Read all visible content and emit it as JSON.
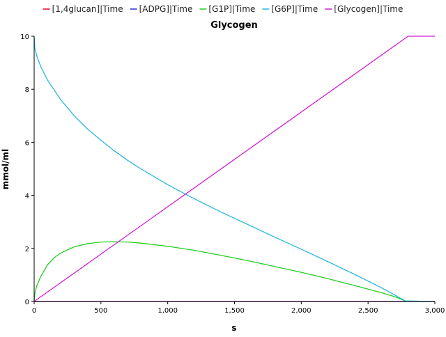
{
  "chart_data": {
    "type": "line",
    "title": "Glycogen",
    "xlabel": "s",
    "ylabel": "mmol/ml",
    "xlim": [
      0,
      3000
    ],
    "ylim": [
      0,
      10
    ],
    "xticks": [
      0,
      500,
      1000,
      1500,
      2000,
      2500,
      3000
    ],
    "xtick_labels": [
      "0",
      "500",
      "1,000",
      "1,500",
      "2,000",
      "2,500",
      "3,000"
    ],
    "yticks": [
      0,
      2,
      4,
      6,
      8,
      10
    ],
    "ytick_labels": [
      "0",
      "2",
      "4",
      "6",
      "8",
      "10"
    ],
    "grid": false,
    "legend_position": "top",
    "series": [
      {
        "name": "[1,4glucan]|Time",
        "color": "#e8002a",
        "x": [
          0,
          3000
        ],
        "y": [
          0,
          0
        ]
      },
      {
        "name": "[ADPG]|Time",
        "color": "#2a2adc",
        "x": [
          0,
          3000
        ],
        "y": [
          0,
          0
        ]
      },
      {
        "name": "[G1P]|Time",
        "color": "#22cc22",
        "x": [
          0,
          5,
          20,
          50,
          100,
          150,
          200,
          300,
          400,
          500,
          600,
          700,
          800,
          1000,
          1200,
          1400,
          1600,
          1800,
          2000,
          2200,
          2400,
          2600,
          2700,
          2780,
          3000
        ],
        "y": [
          0,
          0.3,
          0.6,
          0.95,
          1.38,
          1.65,
          1.83,
          2.06,
          2.18,
          2.24,
          2.25,
          2.24,
          2.2,
          2.08,
          1.93,
          1.74,
          1.54,
          1.32,
          1.1,
          0.86,
          0.6,
          0.33,
          0.18,
          0.02,
          0
        ]
      },
      {
        "name": "[G6P]|Time",
        "color": "#29b6e0",
        "x": [
          0,
          5,
          20,
          50,
          100,
          200,
          300,
          400,
          500,
          600,
          700,
          800,
          1000,
          1200,
          1400,
          1600,
          1800,
          2000,
          2200,
          2400,
          2600,
          2780,
          3000
        ],
        "y": [
          10,
          9.55,
          9.25,
          8.85,
          8.35,
          7.6,
          7.0,
          6.5,
          6.08,
          5.68,
          5.32,
          5.0,
          4.4,
          3.87,
          3.37,
          2.9,
          2.43,
          1.97,
          1.5,
          1.02,
          0.52,
          0.02,
          0
        ]
      },
      {
        "name": "[Glycogen]|Time",
        "color": "#d21ed2",
        "x": [
          0,
          2800,
          3000
        ],
        "y": [
          0,
          10,
          10
        ]
      }
    ]
  }
}
